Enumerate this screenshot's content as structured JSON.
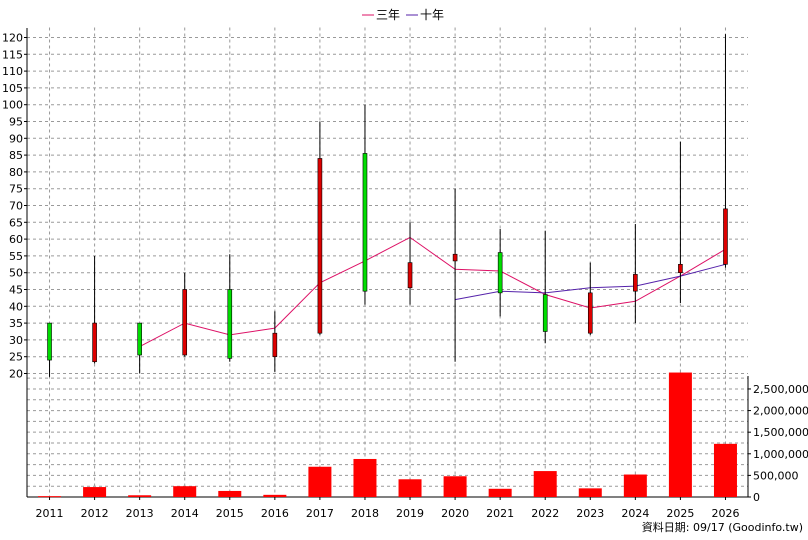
{
  "chart_data": {
    "type": "candlestick-with-volume",
    "years": [
      "2011",
      "2012",
      "2013",
      "2014",
      "2015",
      "2016",
      "2017",
      "2018",
      "2019",
      "2020",
      "2021",
      "2022",
      "2023",
      "2024",
      "2025",
      "2026"
    ],
    "price": {
      "ylim": [
        20,
        120
      ],
      "ticks": [
        20,
        25,
        30,
        35,
        40,
        45,
        50,
        55,
        60,
        65,
        70,
        75,
        80,
        85,
        90,
        95,
        100,
        105,
        110,
        115,
        120
      ],
      "candles": [
        {
          "open": 24,
          "close": 35,
          "high": 35,
          "low": 19,
          "color": "#00dd00"
        },
        {
          "open": 35,
          "close": 23.5,
          "high": 55,
          "low": 23,
          "color": "#dd0000"
        },
        {
          "open": 25.5,
          "close": 35,
          "high": 35,
          "low": 20,
          "color": "#00dd00"
        },
        {
          "open": 25.5,
          "close": 45,
          "high": 50,
          "low": 25,
          "color": "#dd0000"
        },
        {
          "open": 24.5,
          "close": 45,
          "high": 55.5,
          "low": 23.5,
          "color": "#00dd00"
        },
        {
          "open": 25,
          "close": 32,
          "high": 38.5,
          "low": 20.5,
          "color": "#dd0000"
        },
        {
          "open": 32,
          "close": 84,
          "high": 95,
          "low": 31.5,
          "color": "#dd0000"
        },
        {
          "open": 44.5,
          "close": 85.5,
          "high": 100,
          "low": 40.5,
          "color": "#00dd00"
        },
        {
          "open": 45.5,
          "close": 53,
          "high": 65,
          "low": 40.5,
          "color": "#dd0000"
        },
        {
          "open": 53.5,
          "close": 55.5,
          "high": 75,
          "low": 23.5,
          "color": "#dd0000"
        },
        {
          "open": 44,
          "close": 56,
          "high": 63,
          "low": 37,
          "color": "#00dd00"
        },
        {
          "open": 32.5,
          "close": 43.5,
          "high": 62.5,
          "low": 29,
          "color": "#00dd00"
        },
        {
          "open": 32,
          "close": 44,
          "high": 53,
          "low": 31.5,
          "color": "#dd0000"
        },
        {
          "open": 44.5,
          "close": 49.5,
          "high": 64.5,
          "low": 35,
          "color": "#dd0000"
        },
        {
          "open": 50,
          "close": 52.5,
          "high": 89,
          "low": 41,
          "color": "#dd0000"
        },
        {
          "open": 52.5,
          "close": 69,
          "high": 121,
          "low": 51.5,
          "color": "#dd0000"
        }
      ],
      "series": [
        {
          "name": "三年",
          "color": "#dd1166",
          "start_index": 2,
          "values": [
            28,
            35,
            31.5,
            33.5,
            47,
            53.5,
            60.5,
            51,
            50.5,
            43.5,
            39.5,
            41.5,
            49,
            57
          ]
        },
        {
          "name": "十年",
          "color": "#5522aa",
          "start_index": 9,
          "values": [
            42,
            44.5,
            44,
            45.5,
            46,
            49,
            52.5
          ]
        }
      ]
    },
    "volume": {
      "ylim": [
        0,
        2800000
      ],
      "ticks": [
        0,
        500000,
        1000000,
        1500000,
        2000000,
        2500000
      ],
      "tick_labels": [
        "0",
        "500,000",
        "1,000,000",
        "1,500,000",
        "2,000,000",
        "2,500,000"
      ],
      "values": [
        20000,
        230000,
        40000,
        250000,
        140000,
        50000,
        700000,
        880000,
        410000,
        480000,
        190000,
        600000,
        200000,
        520000,
        2880000,
        1230000
      ],
      "color": "#ff0000"
    },
    "grid": true,
    "legend": {
      "position": "top-center",
      "items": [
        "三年",
        "十年"
      ]
    }
  },
  "footer": {
    "source_note": "資料日期: 09/17  (Goodinfo.tw)"
  }
}
